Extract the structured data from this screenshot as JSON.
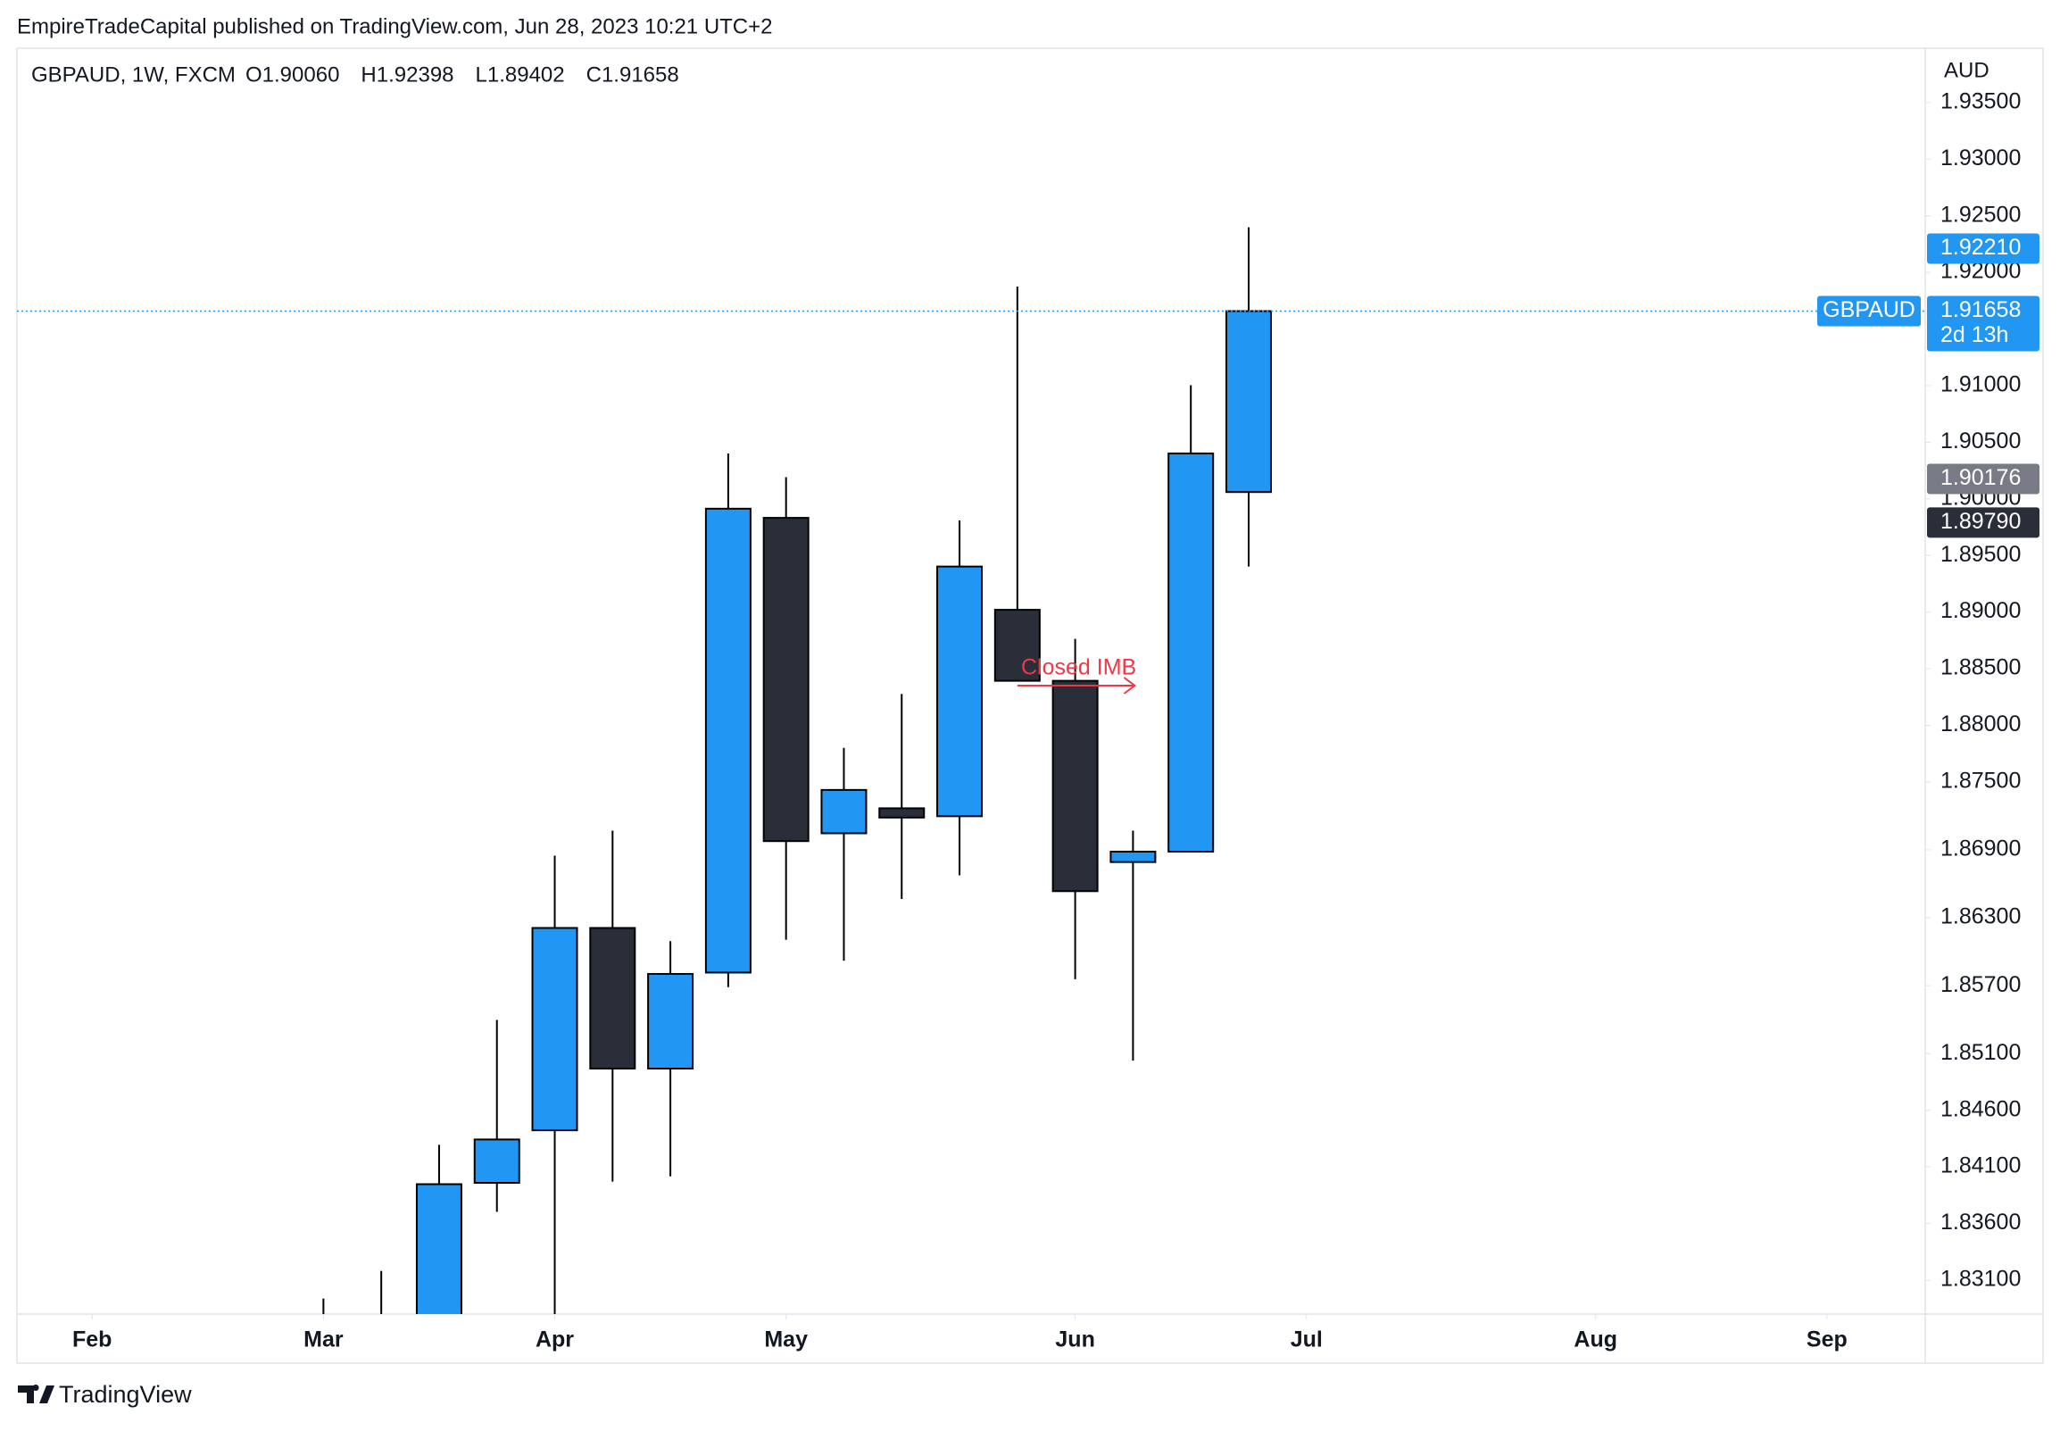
{
  "header": {
    "published": "EmpireTradeCapital published on TradingView.com, Jun 28, 2023 10:21 UTC+2",
    "footer": "TradingView"
  },
  "chart_data": {
    "type": "candlestick",
    "symbol": "GBPAUD, 1W, FXCM",
    "ohlc_labels": [
      "O1.90060",
      "H1.92398",
      "L1.89402",
      "C1.91658"
    ],
    "currency": "AUD",
    "up_color": "#2196f3",
    "down_color": "#2a2e39",
    "xlim": [
      -1.3,
      31.7
    ],
    "xticks": [
      {
        "value": 0,
        "label": "Feb"
      },
      {
        "value": 4,
        "label": "Mar"
      },
      {
        "value": 8,
        "label": "Apr"
      },
      {
        "value": 12,
        "label": "May"
      },
      {
        "value": 17,
        "label": "Jun"
      },
      {
        "value": 21,
        "label": "Jul"
      },
      {
        "value": 26,
        "label": "Aug"
      },
      {
        "value": 30,
        "label": "Sep"
      }
    ],
    "ylim": [
      1.828,
      1.9398
    ],
    "yticks": [
      {
        "value": 1.935,
        "label": "1.93500"
      },
      {
        "value": 1.93,
        "label": "1.93000"
      },
      {
        "value": 1.925,
        "label": "1.92500"
      },
      {
        "value": 1.92,
        "label": "1.92000"
      },
      {
        "value": 1.91,
        "label": "1.91000"
      },
      {
        "value": 1.905,
        "label": "1.90500"
      },
      {
        "value": 1.9,
        "label": "1.90000"
      },
      {
        "value": 1.895,
        "label": "1.89500"
      },
      {
        "value": 1.89,
        "label": "1.89000"
      },
      {
        "value": 1.885,
        "label": "1.88500"
      },
      {
        "value": 1.88,
        "label": "1.88000"
      },
      {
        "value": 1.875,
        "label": "1.87500"
      },
      {
        "value": 1.869,
        "label": "1.86900"
      },
      {
        "value": 1.863,
        "label": "1.86300"
      },
      {
        "value": 1.857,
        "label": "1.85700"
      },
      {
        "value": 1.851,
        "label": "1.85100"
      },
      {
        "value": 1.846,
        "label": "1.84600"
      },
      {
        "value": 1.841,
        "label": "1.84100"
      },
      {
        "value": 1.836,
        "label": "1.83600"
      },
      {
        "value": 1.831,
        "label": "1.83100"
      }
    ],
    "candles": [
      {
        "x": 4,
        "open": null,
        "high": 1.82937,
        "low": null,
        "close": null,
        "dir": "up"
      },
      {
        "x": 5,
        "open": null,
        "high": 1.83181,
        "low": null,
        "close": null,
        "dir": "up"
      },
      {
        "x": 6,
        "open": null,
        "high": 1.84295,
        "low": null,
        "close": 1.83947,
        "dir": "up"
      },
      {
        "x": 7,
        "open": 1.83959,
        "high": 1.85398,
        "low": 1.83703,
        "close": 1.84342,
        "dir": "up"
      },
      {
        "x": 8,
        "open": 1.84423,
        "high": 1.86849,
        "low": null,
        "close": 1.8621,
        "dir": "up"
      },
      {
        "x": 9,
        "open": 1.8621,
        "high": 1.87069,
        "low": 1.8397,
        "close": 1.84968,
        "dir": "down"
      },
      {
        "x": 10,
        "open": 1.84968,
        "high": 1.86094,
        "low": 1.84016,
        "close": 1.85804,
        "dir": "up"
      },
      {
        "x": 11,
        "open": 1.85816,
        "high": 1.90401,
        "low": 1.85688,
        "close": 1.89913,
        "dir": "up"
      },
      {
        "x": 12,
        "open": 1.89832,
        "high": 1.90192,
        "low": 1.86106,
        "close": 1.86977,
        "dir": "down"
      },
      {
        "x": 13,
        "open": 1.87046,
        "high": 1.87801,
        "low": 1.8592,
        "close": 1.87429,
        "dir": "up"
      },
      {
        "x": 14,
        "open": 1.87267,
        "high": 1.88277,
        "low": 1.86466,
        "close": 1.87185,
        "dir": "down"
      },
      {
        "x": 15,
        "open": 1.87197,
        "high": 1.89809,
        "low": 1.86675,
        "close": 1.89402,
        "dir": "up"
      },
      {
        "x": 16,
        "open": 1.8902,
        "high": 1.91875,
        "low": 1.88393,
        "close": 1.88393,
        "dir": "down"
      },
      {
        "x": 17,
        "open": 1.88393,
        "high": 1.88764,
        "low": 1.85758,
        "close": 1.86535,
        "dir": "down"
      },
      {
        "x": 18,
        "open": 1.86792,
        "high": 1.87069,
        "low": 1.85038,
        "close": 1.86884,
        "dir": "up"
      },
      {
        "x": 19,
        "open": 1.86884,
        "high": 1.91004,
        "low": 1.86884,
        "close": 1.90401,
        "dir": "up"
      },
      {
        "x": 20,
        "open": 1.9006,
        "high": 1.92398,
        "low": 1.89402,
        "close": 1.91658,
        "dir": "up"
      }
    ],
    "last_price": {
      "value": 1.91658,
      "label": "1.91658",
      "name": "GBPAUD",
      "countdown": "2d 13h",
      "color": "#2196f3"
    },
    "price_labels": [
      {
        "value": 1.9221,
        "label": "1.92210",
        "color": "#2196f3"
      },
      {
        "value": 1.90176,
        "label": "1.90176",
        "color": "#787b86"
      },
      {
        "value": 1.8979,
        "label": "1.89790",
        "color": "#2a2e39"
      }
    ],
    "annotation": {
      "text": "Closed IMB",
      "color": "#f23645"
    }
  }
}
